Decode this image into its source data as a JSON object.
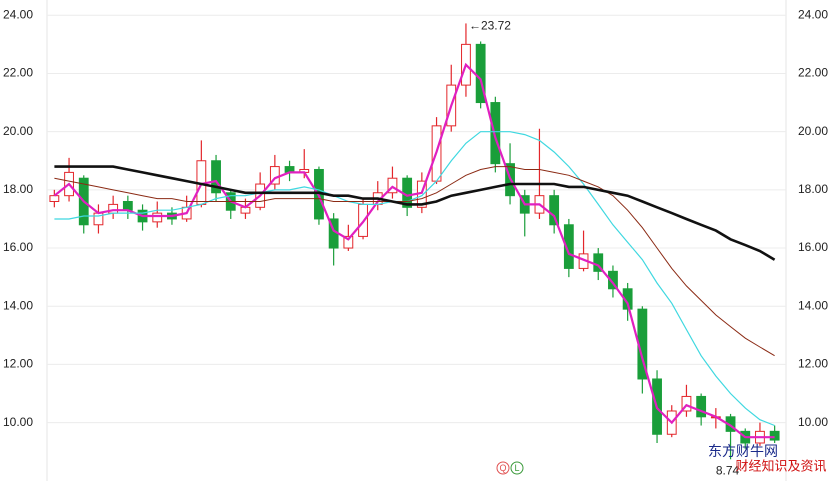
{
  "chart_data": {
    "type": "candlestick",
    "ylim": [
      8.2,
      24.25
    ],
    "yticks": [
      {
        "value": 10,
        "label": "10.00"
      },
      {
        "value": 12,
        "label": "12.00"
      },
      {
        "value": 14,
        "label": "14.00"
      },
      {
        "value": 16,
        "label": "16.00"
      },
      {
        "value": 18,
        "label": "18.00"
      },
      {
        "value": 20,
        "label": "20.00"
      },
      {
        "value": 22,
        "label": "22.00"
      },
      {
        "value": 24,
        "label": "24.00"
      }
    ],
    "grid": true,
    "up_color": "#e3262b",
    "down_color": "#1a9e3a",
    "open": [
      17.6,
      17.8,
      18.4,
      16.8,
      17.2,
      17.6,
      17.3,
      16.9,
      17.2,
      17.0,
      17.5,
      19.0,
      17.9,
      17.2,
      17.4,
      18.2,
      18.8,
      18.6,
      18.7,
      17.0,
      16.0,
      16.4,
      17.5,
      17.9,
      18.4,
      17.4,
      18.3,
      20.2,
      21.6,
      23.0,
      21.0,
      18.9,
      17.8,
      17.2,
      17.8,
      16.8,
      15.3,
      15.8,
      15.2,
      14.6,
      13.9,
      11.5,
      9.6,
      10.4,
      10.9,
      10.2,
      10.2,
      9.7,
      9.3,
      9.7
    ],
    "high": [
      18.0,
      19.1,
      18.5,
      17.5,
      17.8,
      17.8,
      17.5,
      17.6,
      17.4,
      17.8,
      19.7,
      19.2,
      18.0,
      17.7,
      18.6,
      19.2,
      19.0,
      19.4,
      18.8,
      17.2,
      16.8,
      17.7,
      18.3,
      18.8,
      18.5,
      18.6,
      20.5,
      22.3,
      23.72,
      23.1,
      21.2,
      19.6,
      18.0,
      20.1,
      18.0,
      17.0,
      16.6,
      16.0,
      15.4,
      14.8,
      14.0,
      11.8,
      10.6,
      11.3,
      11.0,
      10.5,
      10.3,
      9.8,
      10.0,
      9.9
    ],
    "low": [
      17.4,
      17.6,
      16.5,
      16.5,
      17.0,
      17.0,
      16.6,
      16.7,
      16.8,
      16.9,
      17.4,
      17.6,
      17.0,
      17.0,
      17.3,
      18.0,
      18.3,
      18.4,
      16.8,
      15.4,
      15.9,
      16.3,
      17.3,
      17.7,
      17.1,
      17.2,
      18.2,
      20.0,
      21.2,
      20.8,
      18.6,
      17.5,
      16.4,
      17.0,
      16.5,
      15.0,
      15.2,
      14.9,
      14.3,
      13.5,
      11.0,
      9.3,
      9.5,
      10.2,
      9.9,
      9.8,
      8.74,
      9.1,
      9.2,
      9.3
    ],
    "close": [
      17.8,
      18.6,
      16.8,
      17.2,
      17.5,
      17.3,
      16.9,
      17.2,
      17.0,
      17.4,
      19.0,
      17.9,
      17.3,
      17.4,
      18.2,
      18.8,
      18.6,
      18.7,
      17.0,
      16.0,
      16.4,
      17.5,
      17.9,
      18.4,
      17.4,
      18.3,
      20.2,
      21.6,
      23.0,
      21.0,
      18.9,
      17.8,
      17.2,
      17.8,
      16.8,
      15.3,
      15.8,
      15.2,
      14.6,
      13.9,
      11.5,
      9.6,
      10.4,
      10.9,
      10.2,
      10.2,
      9.7,
      9.3,
      9.7,
      9.4
    ],
    "lines": [
      {
        "color": "#e020c0",
        "width": 2.2,
        "values": [
          17.8,
          18.2,
          17.6,
          17.2,
          17.3,
          17.3,
          17.1,
          17.1,
          17.1,
          17.2,
          18.2,
          18.3,
          17.6,
          17.4,
          17.8,
          18.4,
          18.6,
          18.6,
          17.8,
          16.6,
          16.3,
          16.9,
          17.6,
          18.1,
          17.8,
          17.9,
          19.3,
          20.9,
          22.3,
          21.8,
          19.8,
          18.4,
          17.5,
          17.5,
          17.1,
          15.8,
          15.6,
          15.4,
          14.8,
          14.1,
          12.2,
          10.5,
          10.0,
          10.6,
          10.4,
          10.2,
          9.9,
          9.5,
          9.5,
          9.5
        ]
      },
      {
        "color": "#3fd8e0",
        "width": 1.2,
        "values": [
          17.0,
          17.0,
          17.1,
          17.1,
          17.2,
          17.2,
          17.2,
          17.3,
          17.3,
          17.4,
          17.5,
          17.7,
          17.8,
          17.8,
          17.9,
          18.0,
          18.0,
          18.1,
          18.0,
          17.8,
          17.6,
          17.5,
          17.5,
          17.6,
          17.6,
          17.8,
          18.3,
          19.0,
          19.6,
          20.0,
          20.0,
          20.0,
          19.9,
          19.7,
          19.3,
          18.8,
          18.2,
          17.5,
          16.8,
          16.2,
          15.6,
          14.8,
          14.1,
          13.2,
          12.3,
          11.6,
          11.0,
          10.5,
          10.1,
          9.9
        ]
      },
      {
        "color": "#8b2a14",
        "width": 1,
        "values": [
          18.4,
          18.3,
          18.2,
          18.1,
          18.0,
          17.9,
          17.8,
          17.7,
          17.7,
          17.6,
          17.6,
          17.6,
          17.6,
          17.6,
          17.6,
          17.7,
          17.7,
          17.7,
          17.7,
          17.6,
          17.6,
          17.6,
          17.6,
          17.6,
          17.6,
          17.7,
          17.9,
          18.2,
          18.5,
          18.7,
          18.8,
          18.8,
          18.7,
          18.7,
          18.6,
          18.5,
          18.3,
          18.1,
          17.8,
          17.3,
          16.7,
          16.0,
          15.3,
          14.7,
          14.2,
          13.7,
          13.3,
          12.9,
          12.6,
          12.3
        ]
      },
      {
        "color": "#111111",
        "width": 2.6,
        "values": [
          18.8,
          18.8,
          18.8,
          18.8,
          18.8,
          18.7,
          18.6,
          18.5,
          18.4,
          18.3,
          18.2,
          18.1,
          18.0,
          17.9,
          17.9,
          17.9,
          17.9,
          17.9,
          17.9,
          17.8,
          17.8,
          17.7,
          17.7,
          17.6,
          17.5,
          17.5,
          17.6,
          17.8,
          17.9,
          18.0,
          18.1,
          18.2,
          18.2,
          18.2,
          18.2,
          18.1,
          18.1,
          18.0,
          17.9,
          17.8,
          17.6,
          17.4,
          17.2,
          17.0,
          16.8,
          16.6,
          16.3,
          16.1,
          15.9,
          15.6
        ]
      }
    ],
    "max_label": "←23.72",
    "min_label": "8.74",
    "icons": [
      "Q",
      "L"
    ],
    "watermark": [
      "东方财牛网",
      "财经知识及资讯"
    ]
  }
}
